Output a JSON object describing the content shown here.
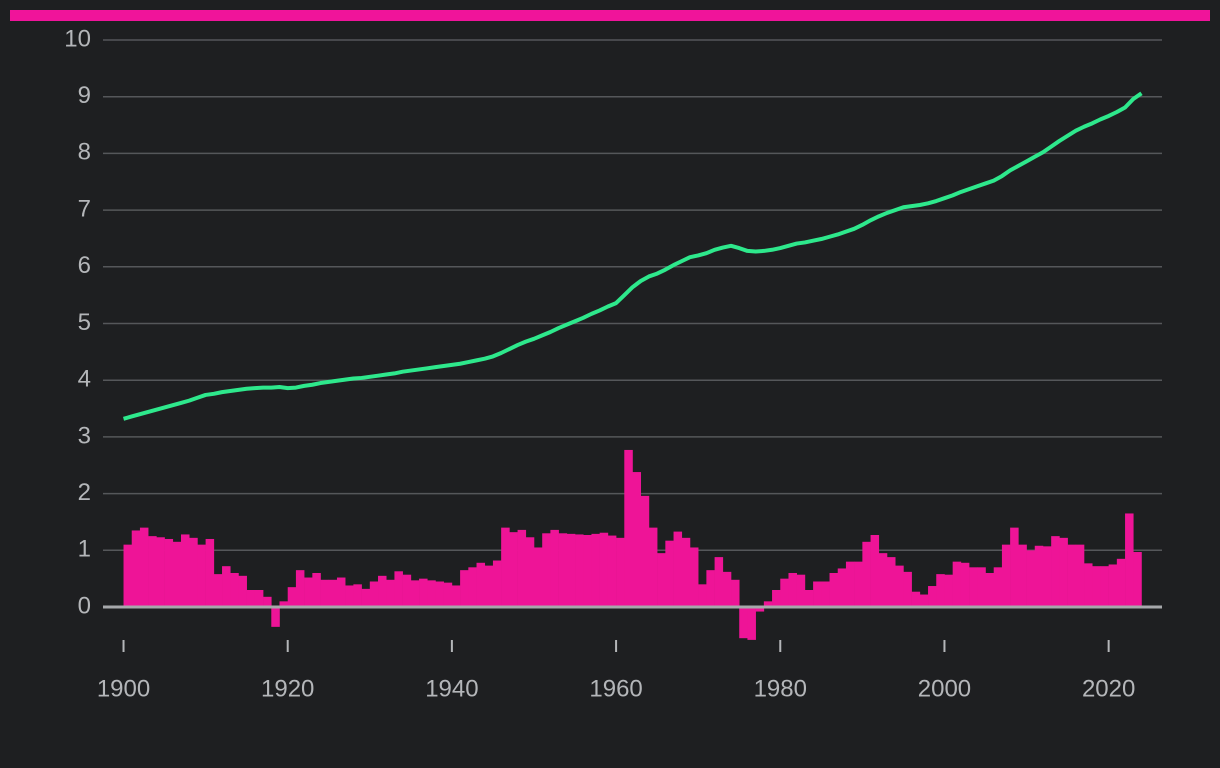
{
  "chart_data": {
    "type": "bar-line",
    "x": [
      1900,
      1901,
      1902,
      1903,
      1904,
      1905,
      1906,
      1907,
      1908,
      1909,
      1910,
      1911,
      1912,
      1913,
      1914,
      1915,
      1916,
      1917,
      1918,
      1919,
      1920,
      1921,
      1922,
      1923,
      1924,
      1925,
      1926,
      1927,
      1928,
      1929,
      1930,
      1931,
      1932,
      1933,
      1934,
      1935,
      1936,
      1937,
      1938,
      1939,
      1940,
      1941,
      1942,
      1943,
      1944,
      1945,
      1946,
      1947,
      1948,
      1949,
      1950,
      1951,
      1952,
      1953,
      1954,
      1955,
      1956,
      1957,
      1958,
      1959,
      1960,
      1961,
      1962,
      1963,
      1964,
      1965,
      1966,
      1967,
      1968,
      1969,
      1970,
      1971,
      1972,
      1973,
      1974,
      1975,
      1976,
      1977,
      1978,
      1979,
      1980,
      1981,
      1982,
      1983,
      1984,
      1985,
      1986,
      1987,
      1988,
      1989,
      1990,
      1991,
      1992,
      1993,
      1994,
      1995,
      1996,
      1997,
      1998,
      1999,
      2000,
      2001,
      2002,
      2003,
      2004,
      2005,
      2006,
      2007,
      2008,
      2009,
      2010,
      2011,
      2012,
      2013,
      2014,
      2015,
      2016,
      2017,
      2018,
      2019,
      2020,
      2021,
      2022,
      2023,
      2024
    ],
    "series": [
      {
        "type": "bar",
        "color": "#ee1497",
        "values": [
          1.1,
          1.35,
          1.4,
          1.25,
          1.23,
          1.2,
          1.15,
          1.28,
          1.22,
          1.1,
          1.2,
          0.58,
          0.72,
          0.6,
          0.55,
          0.3,
          0.3,
          0.18,
          -0.35,
          0.1,
          0.35,
          0.65,
          0.52,
          0.6,
          0.48,
          0.48,
          0.52,
          0.38,
          0.4,
          0.32,
          0.45,
          0.55,
          0.48,
          0.63,
          0.57,
          0.47,
          0.5,
          0.47,
          0.45,
          0.43,
          0.38,
          0.65,
          0.7,
          0.78,
          0.73,
          0.82,
          1.4,
          1.32,
          1.36,
          1.23,
          1.05,
          1.3,
          1.36,
          1.3,
          1.29,
          1.28,
          1.27,
          1.29,
          1.31,
          1.26,
          1.22,
          2.77,
          2.38,
          1.96,
          1.4,
          0.95,
          1.17,
          1.33,
          1.22,
          1.05,
          0.4,
          0.65,
          0.88,
          0.62,
          0.48,
          -0.55,
          -0.58,
          -0.08,
          0.1,
          0.3,
          0.5,
          0.6,
          0.57,
          0.3,
          0.45,
          0.45,
          0.6,
          0.68,
          0.8,
          0.8,
          1.15,
          1.27,
          0.95,
          0.88,
          0.73,
          0.62,
          0.27,
          0.22,
          0.37,
          0.58,
          0.57,
          0.8,
          0.78,
          0.7,
          0.7,
          0.6,
          0.7,
          1.1,
          1.4,
          1.1,
          1.0,
          1.08,
          1.07,
          1.25,
          1.22,
          1.1,
          1.1,
          0.77,
          0.72,
          0.72,
          0.75,
          0.85,
          1.65,
          0.97,
          null
        ]
      },
      {
        "type": "line",
        "color": "#2ee88c",
        "values": [
          3.32,
          3.36,
          3.4,
          3.44,
          3.48,
          3.52,
          3.56,
          3.6,
          3.64,
          3.69,
          3.74,
          3.76,
          3.79,
          3.81,
          3.83,
          3.85,
          3.86,
          3.87,
          3.87,
          3.88,
          3.86,
          3.87,
          3.9,
          3.92,
          3.95,
          3.97,
          3.99,
          4.01,
          4.03,
          4.04,
          4.06,
          4.08,
          4.1,
          4.12,
          4.15,
          4.17,
          4.19,
          4.21,
          4.23,
          4.25,
          4.27,
          4.29,
          4.32,
          4.35,
          4.38,
          4.42,
          4.48,
          4.55,
          4.62,
          4.68,
          4.73,
          4.79,
          4.85,
          4.92,
          4.98,
          5.04,
          5.1,
          5.17,
          5.23,
          5.3,
          5.36,
          5.5,
          5.64,
          5.75,
          5.83,
          5.88,
          5.95,
          6.03,
          6.1,
          6.17,
          6.2,
          6.24,
          6.3,
          6.34,
          6.37,
          6.33,
          6.28,
          6.27,
          6.28,
          6.3,
          6.33,
          6.37,
          6.41,
          6.43,
          6.46,
          6.49,
          6.53,
          6.57,
          6.62,
          6.67,
          6.74,
          6.82,
          6.89,
          6.95,
          7.0,
          7.05,
          7.07,
          7.09,
          7.12,
          7.16,
          7.21,
          7.26,
          7.32,
          7.37,
          7.42,
          7.47,
          7.52,
          7.6,
          7.7,
          7.78,
          7.86,
          7.94,
          8.02,
          8.12,
          8.22,
          8.31,
          8.4,
          8.47,
          8.53,
          8.6,
          8.66,
          8.73,
          8.81,
          8.96,
          9.06
        ]
      }
    ],
    "xlim": [
      1897.5,
      2026.5
    ],
    "xticks": [
      1900,
      1920,
      1940,
      1960,
      1980,
      2000,
      2020
    ],
    "ylim": [
      -0.7,
      10
    ],
    "yticks": [
      0,
      1,
      2,
      3,
      4,
      5,
      6,
      7,
      8,
      9,
      10
    ],
    "grid": true,
    "accent_color": "#f0149a"
  }
}
